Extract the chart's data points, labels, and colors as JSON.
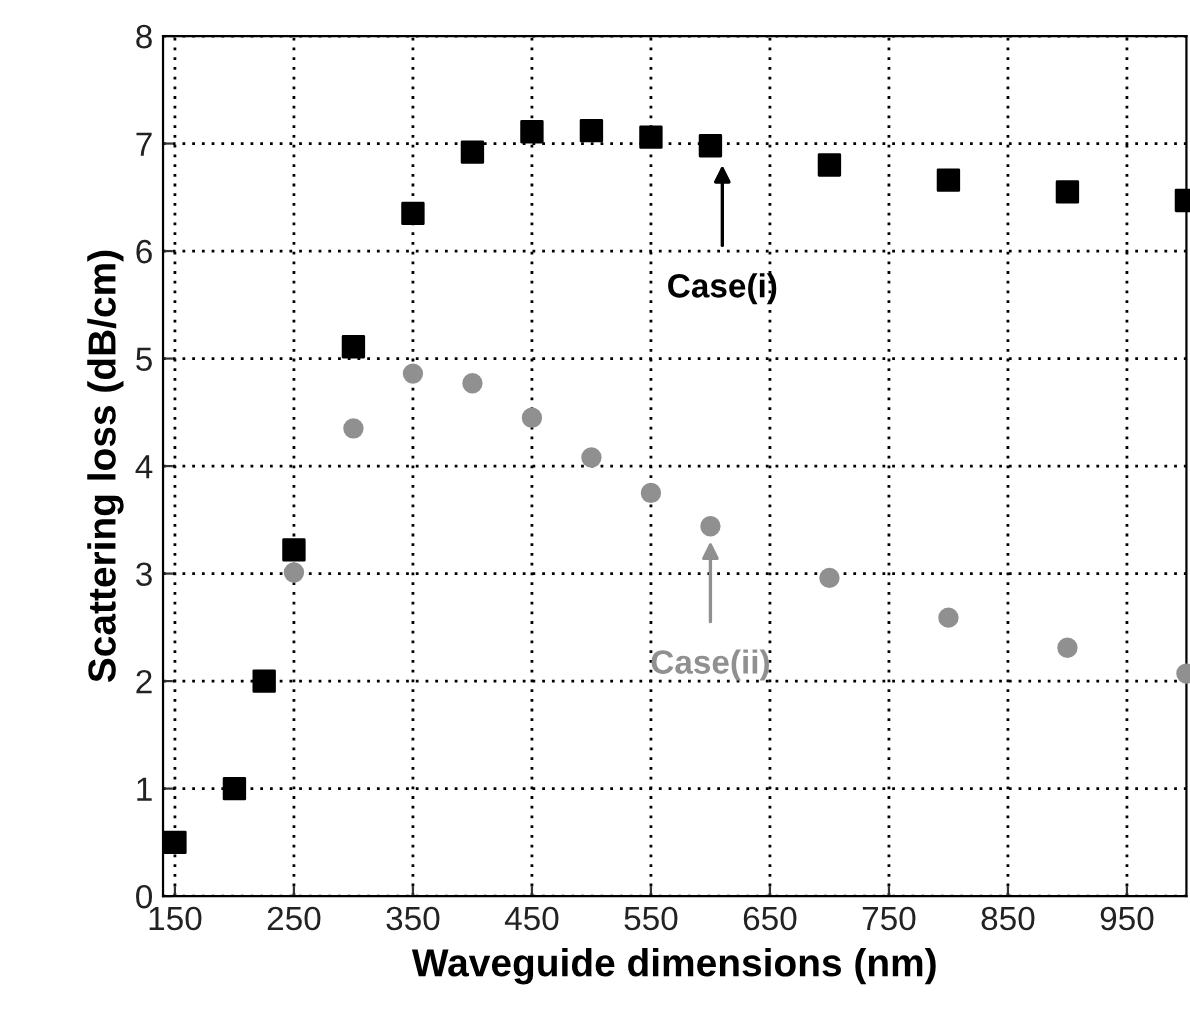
{
  "chart_data": {
    "type": "scatter",
    "xlabel": "Waveguide dimensions (nm)",
    "ylabel": "Scattering loss (dB/cm)",
    "series": [
      {
        "color": "#000000",
        "marker": "square",
        "x": [
          150,
          200,
          225,
          250,
          300,
          350,
          400,
          450,
          500,
          550,
          600,
          700,
          800,
          900,
          1000
        ],
        "values": [
          0.5,
          1.0,
          2.0,
          3.22,
          5.11,
          6.35,
          6.92,
          7.11,
          7.12,
          7.06,
          6.98,
          6.8,
          6.66,
          6.55,
          6.47
        ]
      },
      {
        "color": "#909090",
        "marker": "circle",
        "x": [
          250,
          300,
          350,
          400,
          450,
          500,
          550,
          600,
          700,
          800,
          900,
          1000
        ],
        "values": [
          3.01,
          4.35,
          4.86,
          4.77,
          4.45,
          4.08,
          3.75,
          3.44,
          2.96,
          2.59,
          2.31,
          2.07
        ]
      }
    ],
    "annotations": [
      {
        "text": "Case(i)",
        "x": 610,
        "y": 6.8
      },
      {
        "text": "Case(ii)",
        "x": 600,
        "y": 3.3
      }
    ],
    "xlim": [
      140,
      1000
    ],
    "ylim": [
      0,
      8
    ],
    "xticks": [
      150,
      250,
      350,
      450,
      550,
      650,
      750,
      850,
      950
    ],
    "yticks": [
      0,
      1,
      2,
      3,
      4,
      5,
      6,
      7,
      8
    ],
    "grid": true
  }
}
